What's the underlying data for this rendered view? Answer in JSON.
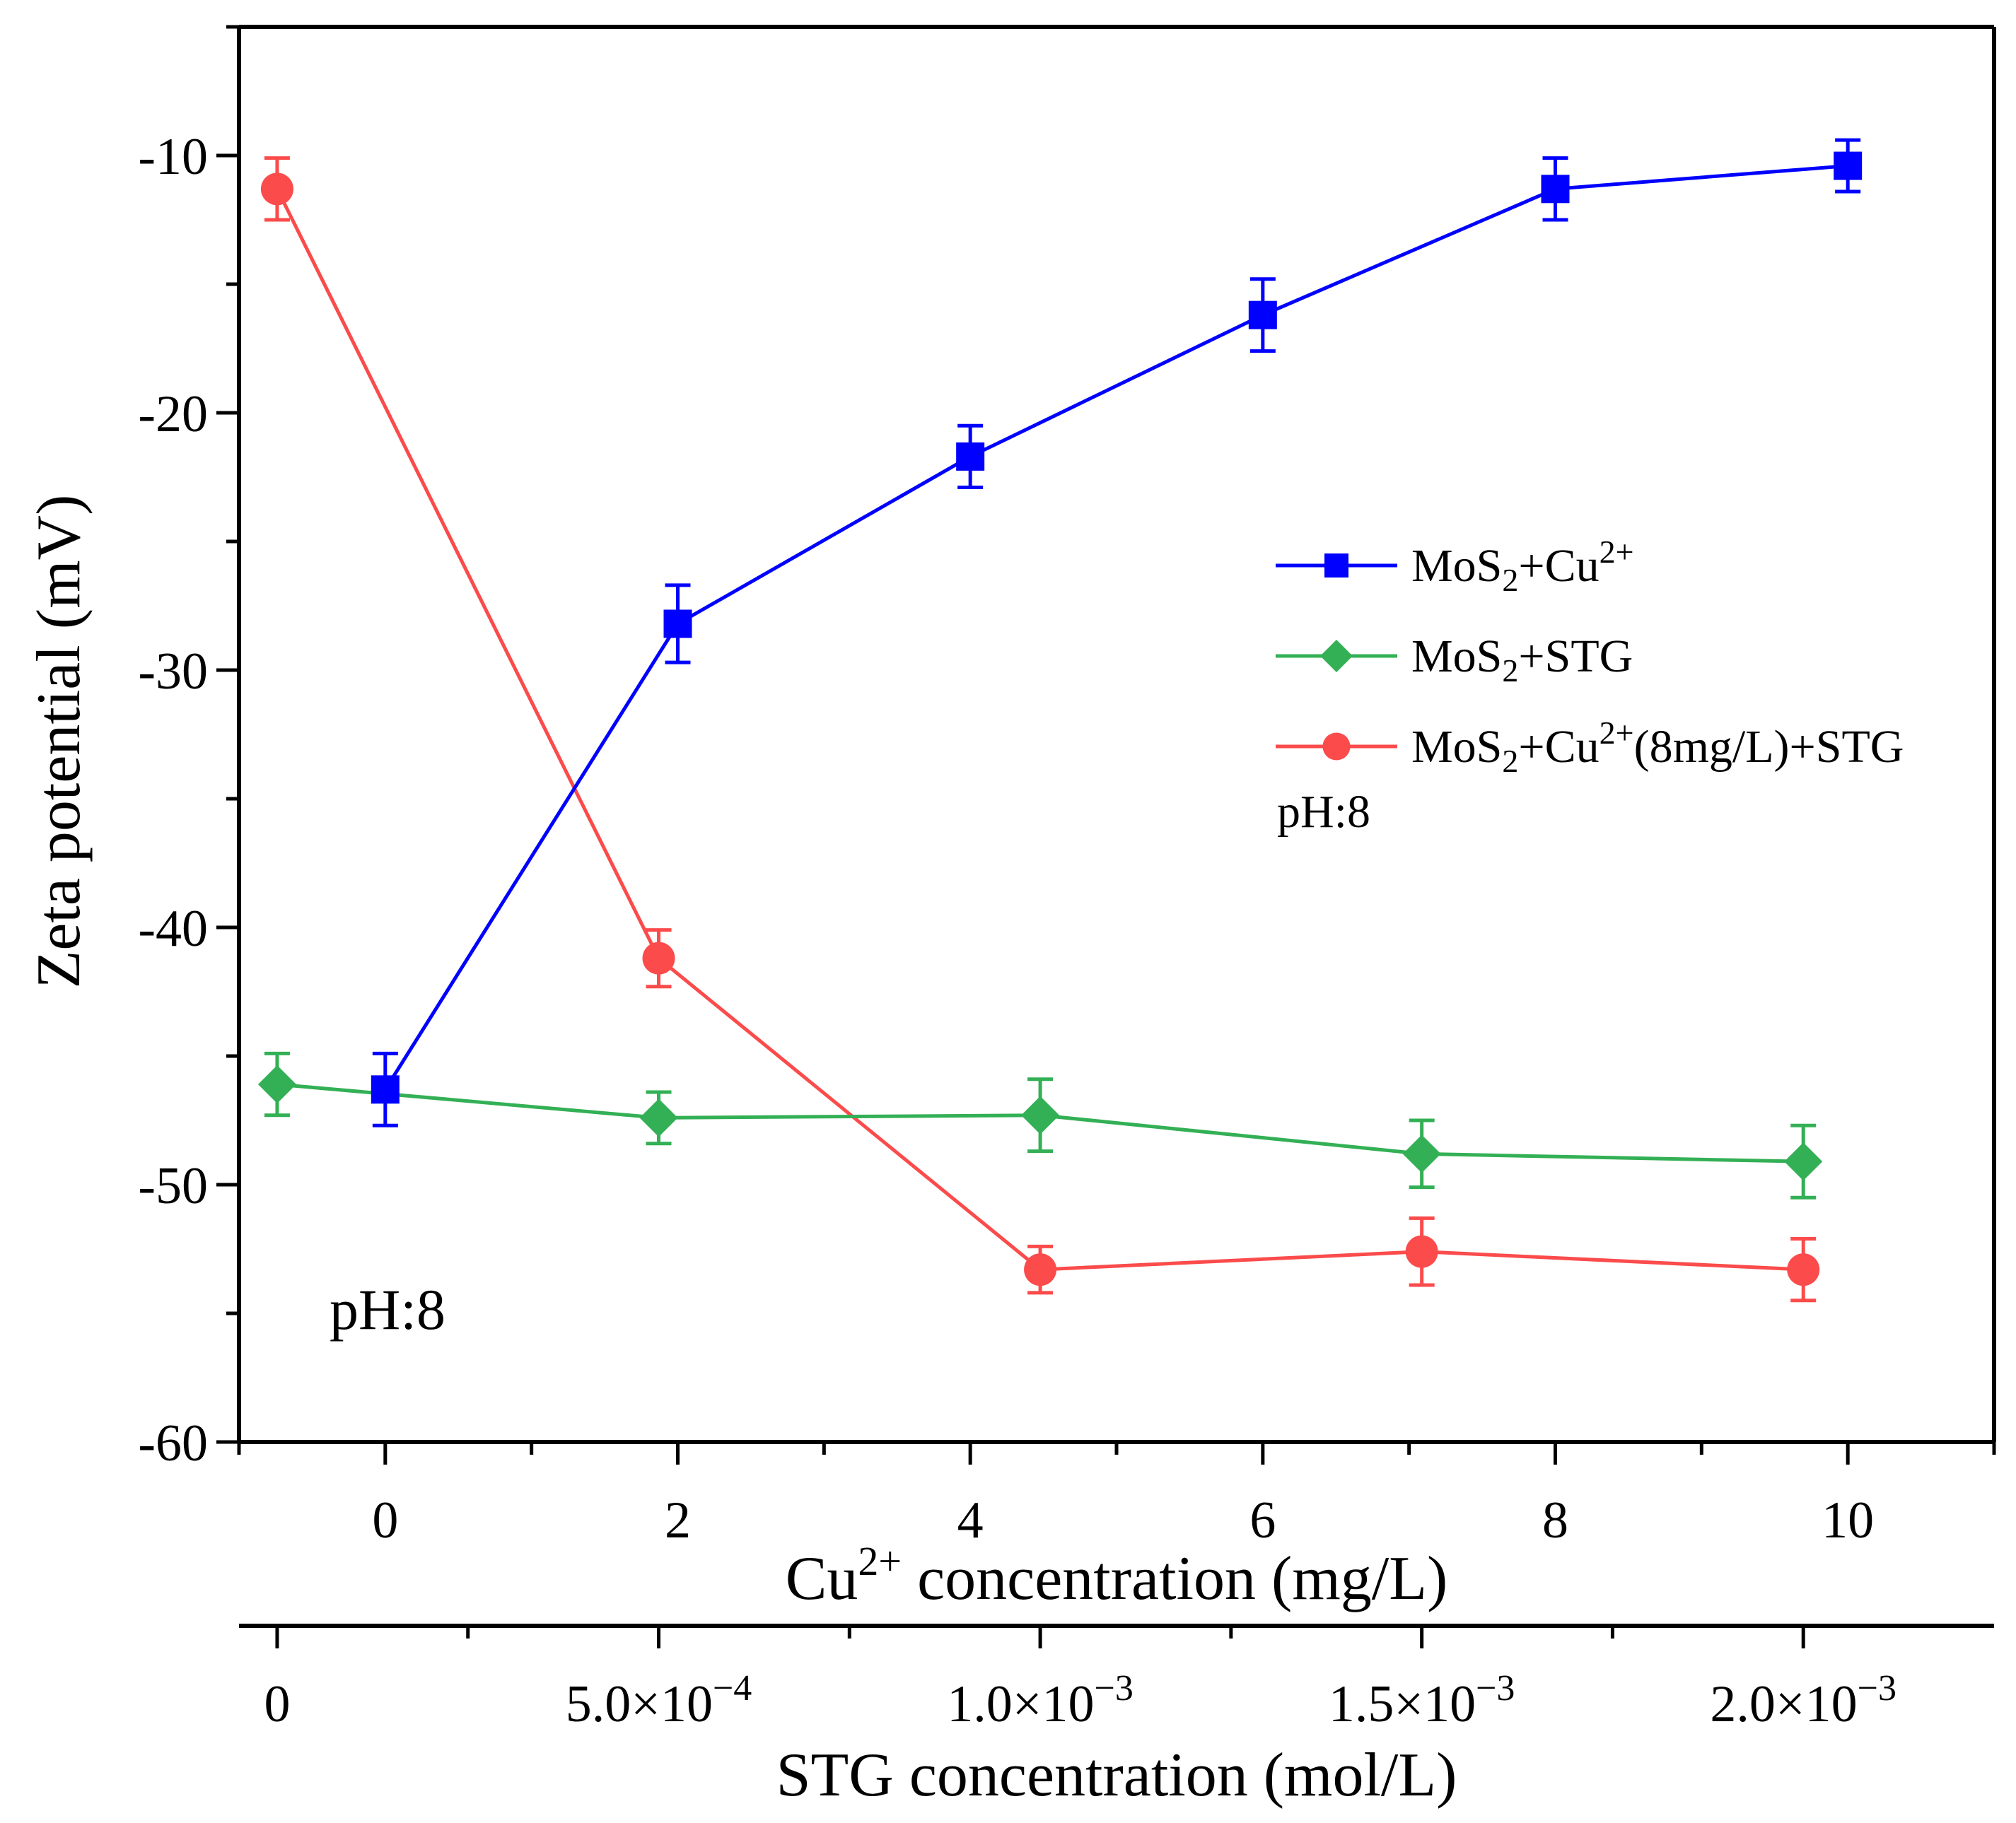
{
  "chart_data": {
    "type": "line",
    "title": "",
    "ylabel": "Zeta potential (mV)",
    "ylim": [
      -60,
      -5
    ],
    "yticks": [
      "-10",
      "-20",
      "-30",
      "-40",
      "-50",
      "-60"
    ],
    "x_primary": {
      "label_prefix": "Cu",
      "label_sup": "2+",
      "label_suffix": " concentration (mg/L)",
      "xlim": [
        -1,
        11
      ],
      "ticks": [
        "0",
        "2",
        "4",
        "6",
        "8",
        "10"
      ]
    },
    "x_secondary": {
      "label": "STG concentration (mol/L)",
      "xlim": [
        -5e-05,
        0.00225
      ],
      "ticks": [
        {
          "mant": "0",
          "exp": ""
        },
        {
          "mant": "5.0×10",
          "exp": "−4"
        },
        {
          "mant": "1.0×10",
          "exp": "−3"
        },
        {
          "mant": "1.5×10",
          "exp": "−3"
        },
        {
          "mant": "2.0×10",
          "exp": "−3"
        }
      ]
    },
    "series": [
      {
        "name": "MoS2+Cu2+",
        "legend_parts": [
          [
            "MoS",
            "n"
          ],
          [
            "2",
            "sub"
          ],
          [
            "+Cu",
            "n"
          ],
          [
            "2+",
            "sup"
          ]
        ],
        "axis": "primary",
        "color": "#0000ff",
        "marker": "square",
        "points": [
          {
            "x": 0,
            "y": -46.3,
            "err": 1.4
          },
          {
            "x": 2,
            "y": -28.2,
            "err": 1.5
          },
          {
            "x": 4,
            "y": -21.7,
            "err": 1.2
          },
          {
            "x": 6,
            "y": -16.2,
            "err": 1.4
          },
          {
            "x": 8,
            "y": -11.3,
            "err": 1.2
          },
          {
            "x": 10,
            "y": -10.4,
            "err": 1.0
          }
        ]
      },
      {
        "name": "MoS2+STG",
        "legend_parts": [
          [
            "MoS",
            "n"
          ],
          [
            "2",
            "sub"
          ],
          [
            "+STG",
            "n"
          ]
        ],
        "axis": "secondary",
        "color": "#33b055",
        "marker": "diamond",
        "points": [
          {
            "x": 0,
            "y": -46.1,
            "err": 1.2
          },
          {
            "x": 0.0005,
            "y": -47.4,
            "err": 1.0
          },
          {
            "x": 0.001,
            "y": -47.3,
            "err": 1.4
          },
          {
            "x": 0.0015,
            "y": -48.8,
            "err": 1.3
          },
          {
            "x": 0.002,
            "y": -49.1,
            "err": 1.4
          }
        ]
      },
      {
        "name": "MoS2+Cu2+(8mg/L)+STG",
        "legend_parts": [
          [
            "MoS",
            "n"
          ],
          [
            "2",
            "sub"
          ],
          [
            "+Cu",
            "n"
          ],
          [
            "2+",
            "sup"
          ],
          [
            "(8mg/L)+STG",
            "n"
          ]
        ],
        "axis": "secondary",
        "color": "#fb4b4b",
        "marker": "circle",
        "points": [
          {
            "x": 0,
            "y": -11.3,
            "err": 1.2
          },
          {
            "x": 0.0005,
            "y": -41.2,
            "err": 1.1
          },
          {
            "x": 0.001,
            "y": -53.3,
            "err": 0.9
          },
          {
            "x": 0.0015,
            "y": -52.6,
            "err": 1.3
          },
          {
            "x": 0.002,
            "y": -53.3,
            "err": 1.2
          }
        ]
      }
    ],
    "annotations": [
      "pH:8",
      "pH:8"
    ],
    "legend": "center-right"
  }
}
